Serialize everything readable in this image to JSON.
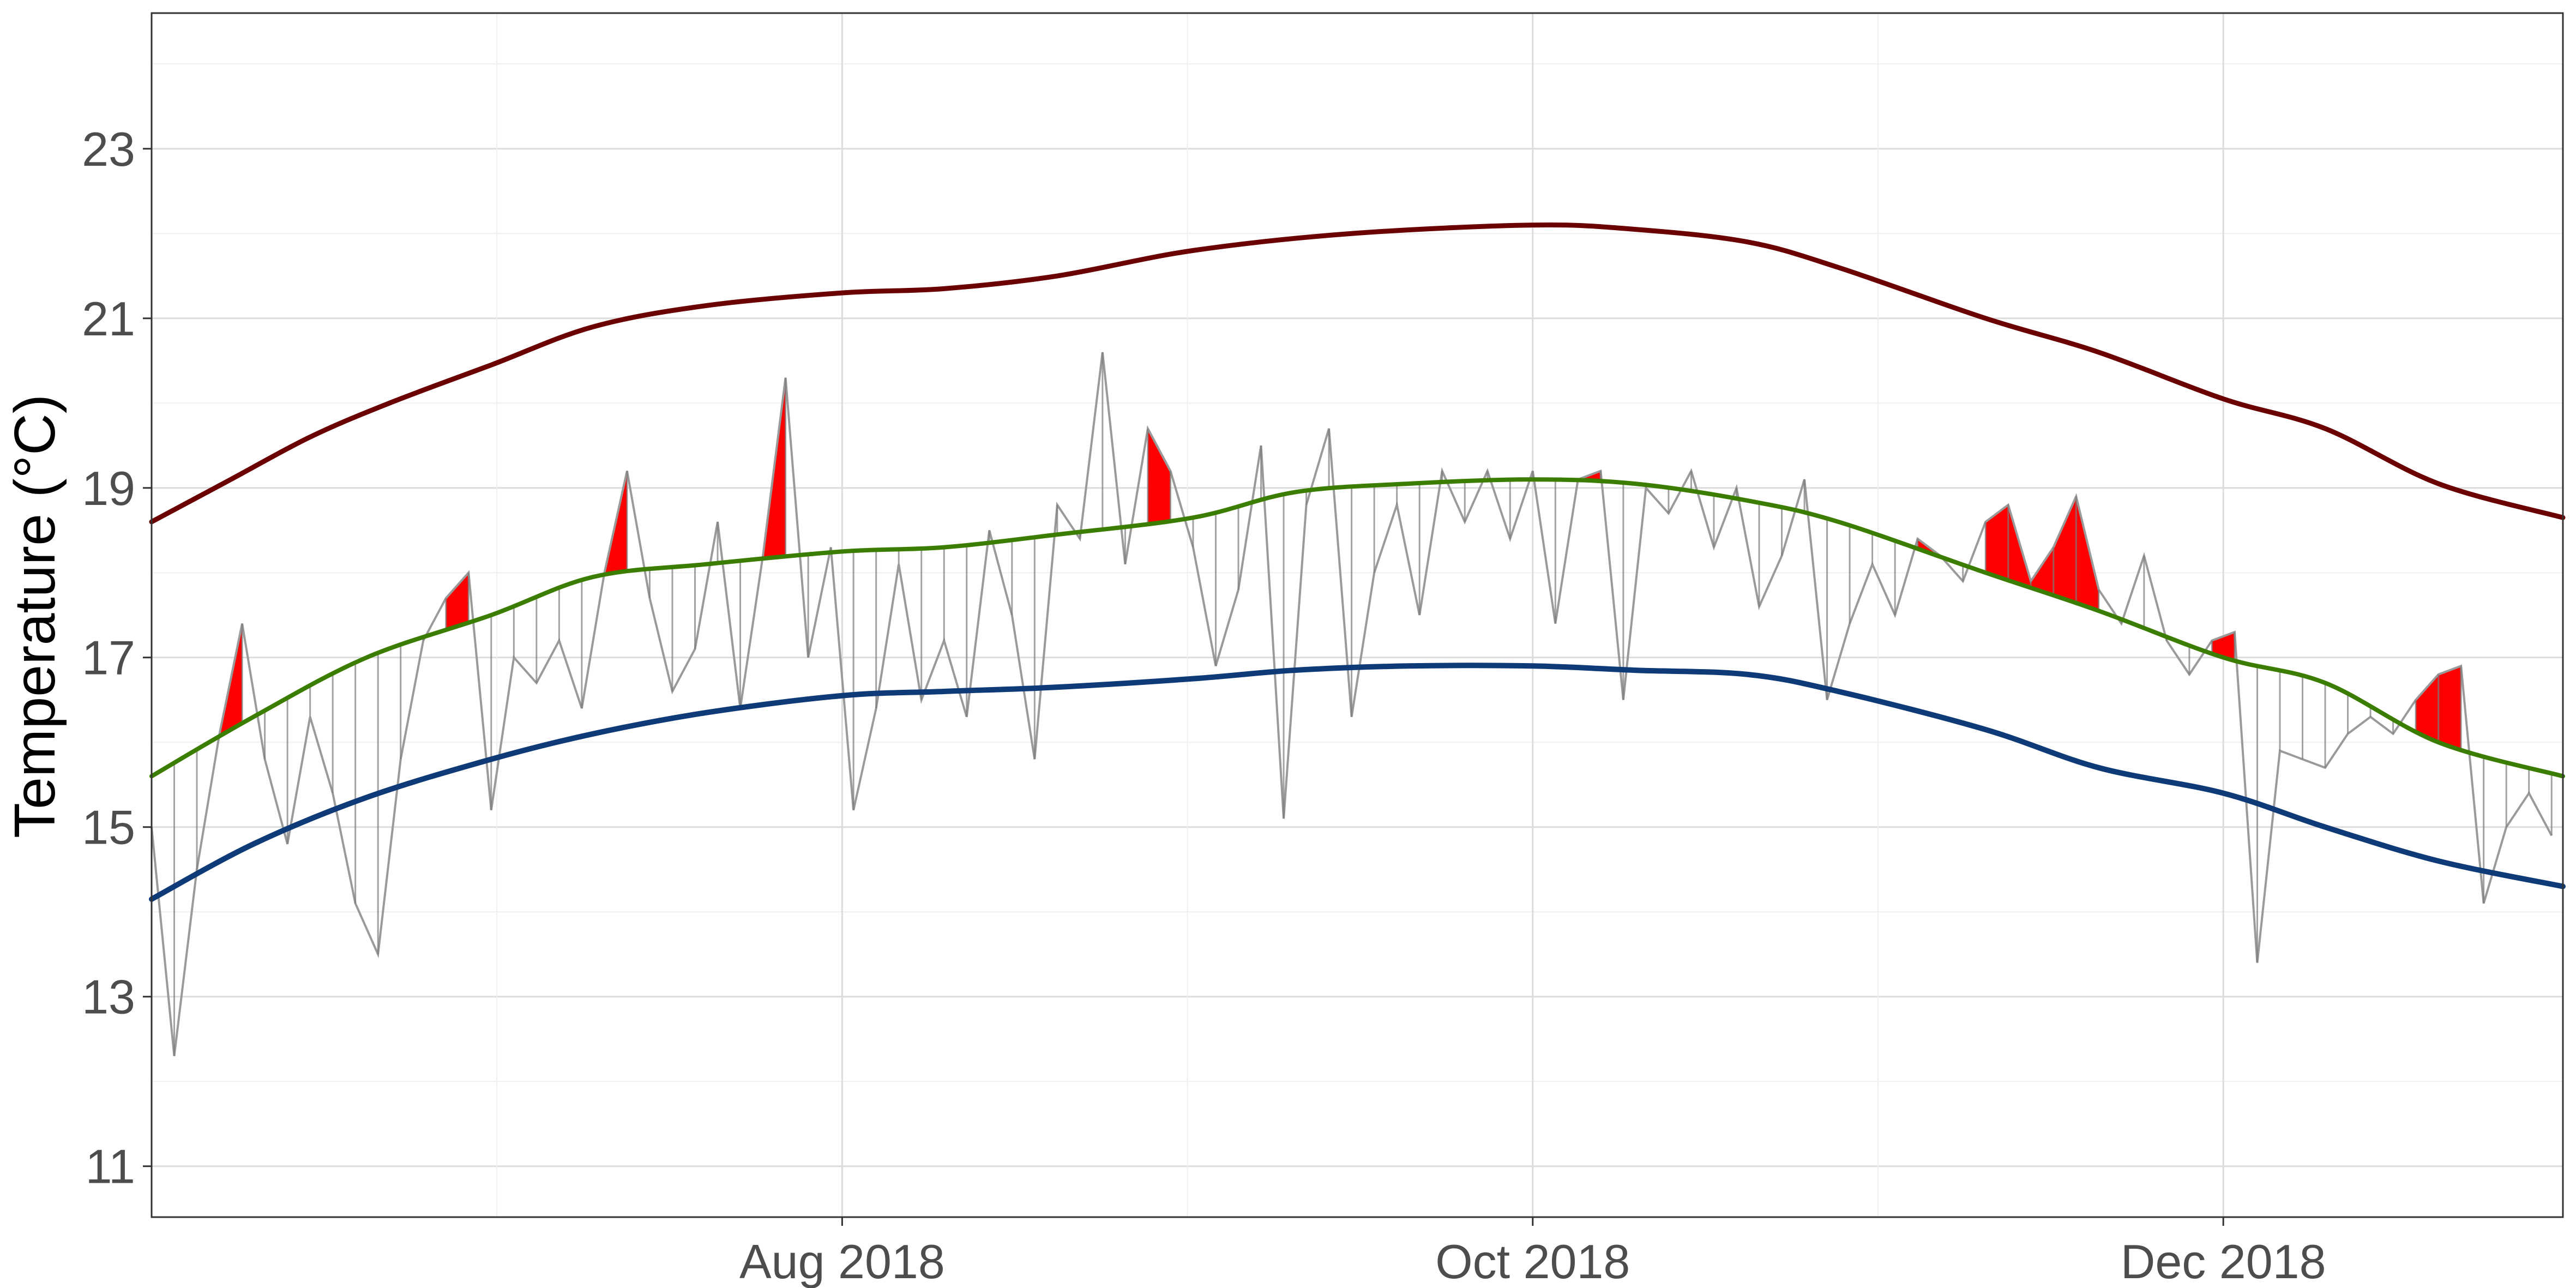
{
  "chart_data": {
    "type": "line",
    "title": "",
    "xlabel": "",
    "ylabel": "Temperature (°C)",
    "xlim": [
      "2018-06-01",
      "2018-12-31"
    ],
    "ylim": [
      10.4,
      24.6
    ],
    "grid": true,
    "legend": "none",
    "x_ticks": [
      {
        "date": "2018-08-01",
        "label": "Aug 2018"
      },
      {
        "date": "2018-10-01",
        "label": "Oct 2018"
      },
      {
        "date": "2018-12-01",
        "label": "Dec 2018"
      }
    ],
    "y_ticks": [
      11,
      13,
      15,
      17,
      19,
      21,
      23
    ],
    "colors": {
      "threshold": "#6b0000",
      "seasonal_mean": "#3a7d00",
      "climatology": "#0f3a78",
      "daily_temp": "#9a9a9a",
      "heatwave_fill": "#ff0000"
    },
    "series": [
      {
        "role": "threshold",
        "x": [
          "2018-06-01",
          "2018-06-08",
          "2018-06-15",
          "2018-06-22",
          "2018-07-01",
          "2018-07-10",
          "2018-07-20",
          "2018-08-01",
          "2018-08-10",
          "2018-08-20",
          "2018-09-01",
          "2018-09-15",
          "2018-10-01",
          "2018-10-10",
          "2018-10-20",
          "2018-10-28",
          "2018-11-10",
          "2018-11-20",
          "2018-12-01",
          "2018-12-10",
          "2018-12-20",
          "2018-12-31"
        ],
        "values": [
          18.6,
          19.1,
          19.6,
          20.0,
          20.45,
          20.9,
          21.15,
          21.3,
          21.35,
          21.5,
          21.8,
          22.0,
          22.1,
          22.05,
          21.9,
          21.6,
          21.0,
          20.6,
          20.05,
          19.7,
          19.05,
          18.65
        ]
      },
      {
        "role": "seasonal_mean",
        "x": [
          "2018-06-01",
          "2018-06-10",
          "2018-06-20",
          "2018-07-01",
          "2018-07-10",
          "2018-07-20",
          "2018-08-01",
          "2018-08-10",
          "2018-08-20",
          "2018-09-01",
          "2018-09-10",
          "2018-09-20",
          "2018-10-01",
          "2018-10-10",
          "2018-10-20",
          "2018-10-28",
          "2018-11-10",
          "2018-11-20",
          "2018-12-01",
          "2018-12-10",
          "2018-12-20",
          "2018-12-31"
        ],
        "values": [
          15.6,
          16.3,
          17.0,
          17.5,
          17.95,
          18.1,
          18.25,
          18.3,
          18.45,
          18.65,
          18.95,
          19.05,
          19.1,
          19.05,
          18.85,
          18.6,
          18.0,
          17.55,
          17.0,
          16.7,
          16.0,
          15.6
        ]
      },
      {
        "role": "climatology",
        "x": [
          "2018-06-01",
          "2018-06-10",
          "2018-06-20",
          "2018-07-01",
          "2018-07-10",
          "2018-07-20",
          "2018-08-01",
          "2018-08-10",
          "2018-08-20",
          "2018-09-01",
          "2018-09-10",
          "2018-09-20",
          "2018-10-01",
          "2018-10-10",
          "2018-10-20",
          "2018-10-28",
          "2018-11-10",
          "2018-11-20",
          "2018-12-01",
          "2018-12-10",
          "2018-12-20",
          "2018-12-31"
        ],
        "values": [
          14.15,
          14.8,
          15.35,
          15.8,
          16.1,
          16.35,
          16.55,
          16.6,
          16.65,
          16.75,
          16.85,
          16.9,
          16.9,
          16.85,
          16.8,
          16.6,
          16.15,
          15.7,
          15.4,
          15.0,
          14.6,
          14.3
        ]
      },
      {
        "role": "daily_temp",
        "x": [
          "2018-06-01",
          "2018-06-03",
          "2018-06-05",
          "2018-06-07",
          "2018-06-09",
          "2018-06-11",
          "2018-06-13",
          "2018-06-15",
          "2018-06-17",
          "2018-06-19",
          "2018-06-21",
          "2018-06-23",
          "2018-06-25",
          "2018-06-27",
          "2018-06-29",
          "2018-07-01",
          "2018-07-03",
          "2018-07-05",
          "2018-07-07",
          "2018-07-09",
          "2018-07-11",
          "2018-07-13",
          "2018-07-15",
          "2018-07-17",
          "2018-07-19",
          "2018-07-21",
          "2018-07-23",
          "2018-07-25",
          "2018-07-27",
          "2018-07-29",
          "2018-07-31",
          "2018-08-02",
          "2018-08-04",
          "2018-08-06",
          "2018-08-08",
          "2018-08-10",
          "2018-08-12",
          "2018-08-14",
          "2018-08-16",
          "2018-08-18",
          "2018-08-20",
          "2018-08-22",
          "2018-08-24",
          "2018-08-26",
          "2018-08-28",
          "2018-08-30",
          "2018-09-01",
          "2018-09-03",
          "2018-09-05",
          "2018-09-07",
          "2018-09-09",
          "2018-09-11",
          "2018-09-13",
          "2018-09-15",
          "2018-09-17",
          "2018-09-19",
          "2018-09-21",
          "2018-09-23",
          "2018-09-25",
          "2018-09-27",
          "2018-09-29",
          "2018-10-01",
          "2018-10-03",
          "2018-10-05",
          "2018-10-07",
          "2018-10-09",
          "2018-10-11",
          "2018-10-13",
          "2018-10-15",
          "2018-10-17",
          "2018-10-19",
          "2018-10-21",
          "2018-10-23",
          "2018-10-25",
          "2018-10-27",
          "2018-10-29",
          "2018-10-31",
          "2018-11-02",
          "2018-11-04",
          "2018-11-06",
          "2018-11-08",
          "2018-11-10",
          "2018-11-12",
          "2018-11-14",
          "2018-11-16",
          "2018-11-18",
          "2018-11-20",
          "2018-11-22",
          "2018-11-24",
          "2018-11-26",
          "2018-11-28",
          "2018-11-30",
          "2018-12-02",
          "2018-12-04",
          "2018-12-06",
          "2018-12-08",
          "2018-12-10",
          "2018-12-12",
          "2018-12-14",
          "2018-12-16",
          "2018-12-18",
          "2018-12-20",
          "2018-12-22",
          "2018-12-24",
          "2018-12-26",
          "2018-12-28",
          "2018-12-30"
        ],
        "values": [
          15.0,
          12.3,
          14.5,
          16.1,
          17.4,
          15.8,
          14.8,
          16.3,
          15.4,
          14.1,
          13.5,
          15.8,
          17.2,
          17.7,
          18.0,
          15.2,
          17.0,
          16.7,
          17.2,
          16.4,
          18.0,
          19.2,
          17.7,
          16.6,
          17.1,
          18.6,
          16.4,
          18.2,
          20.3,
          17.0,
          18.3,
          15.2,
          16.4,
          18.1,
          16.5,
          17.2,
          16.3,
          18.5,
          17.5,
          15.8,
          18.8,
          18.4,
          20.6,
          18.1,
          19.7,
          19.2,
          18.3,
          16.9,
          17.8,
          19.5,
          15.1,
          18.8,
          19.7,
          16.3,
          18.0,
          18.8,
          17.5,
          19.2,
          18.6,
          19.2,
          18.4,
          19.2,
          17.4,
          19.1,
          19.2,
          16.5,
          19.0,
          18.7,
          19.2,
          18.3,
          19.0,
          17.6,
          18.2,
          19.1,
          16.5,
          17.4,
          18.1,
          17.5,
          18.4,
          18.2,
          17.9,
          18.6,
          18.8,
          17.9,
          18.3,
          18.9,
          17.8,
          17.4,
          18.2,
          17.2,
          16.8,
          17.2,
          17.3,
          13.4,
          15.9,
          15.8,
          15.7,
          16.1,
          16.3,
          16.1,
          16.5,
          16.8,
          16.9,
          14.1,
          15.0,
          15.4,
          14.9
        ]
      }
    ]
  }
}
